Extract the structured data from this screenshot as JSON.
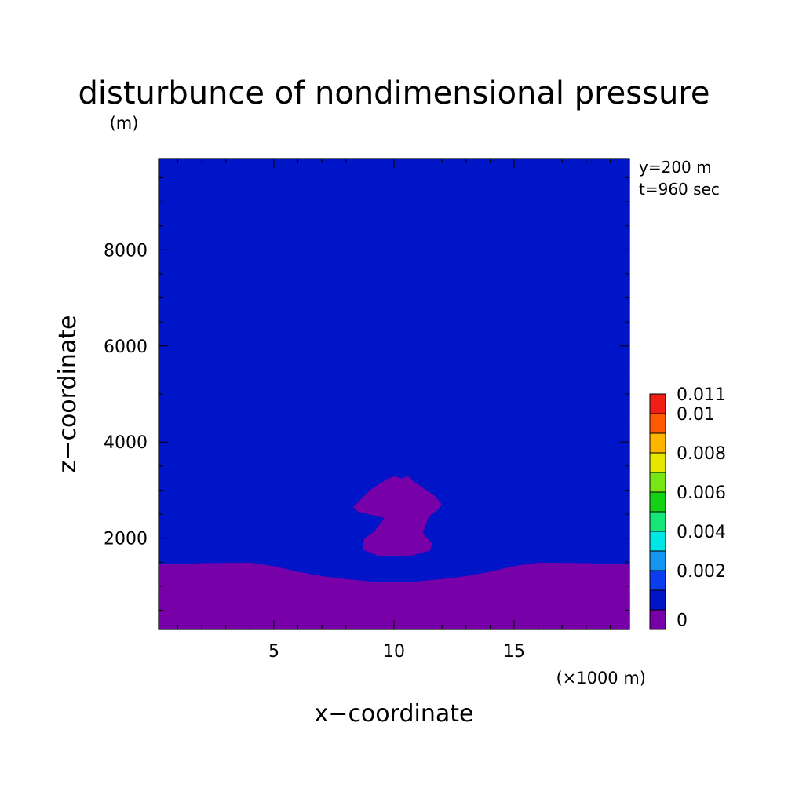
{
  "chart_data": {
    "type": "heatmap",
    "subtype": "filled-contour",
    "title": "disturbunce of nondimensional pressure",
    "xlabel": "x−coordinate",
    "ylabel": "z−coordinate",
    "x_unit_label": "(×1000 m)",
    "y_unit_label": "(m)",
    "annotations": [
      "y=200 m",
      "t=960 sec"
    ],
    "xlim": [
      0.2,
      19.8
    ],
    "ylim": [
      100,
      9900
    ],
    "x_ticks": [
      5,
      10,
      15
    ],
    "x_tick_labels": [
      "5",
      "10",
      "15"
    ],
    "y_ticks": [
      2000,
      4000,
      6000,
      8000
    ],
    "y_tick_labels": [
      "2000",
      "4000",
      "6000",
      "8000"
    ],
    "x_minor_step": 1,
    "y_minor_step": 500,
    "grid": false,
    "background_level": "0 to 0.001",
    "colorbar": {
      "placement": "right",
      "levels": [
        {
          "value": -0.001,
          "color": "#7800a8"
        },
        {
          "value": 0,
          "color": "#0014c8"
        },
        {
          "value": 0.001,
          "color": "#0a3cf0"
        },
        {
          "value": 0.002,
          "color": "#1496f0"
        },
        {
          "value": 0.003,
          "color": "#00e6e6"
        },
        {
          "value": 0.004,
          "color": "#14e678"
        },
        {
          "value": 0.005,
          "color": "#14d214"
        },
        {
          "value": 0.006,
          "color": "#78e614"
        },
        {
          "value": 0.007,
          "color": "#e6e600"
        },
        {
          "value": 0.008,
          "color": "#ffb400"
        },
        {
          "value": 0.009,
          "color": "#ff5a00"
        },
        {
          "value": 0.01,
          "color": "#f01e14"
        }
      ],
      "tick_labels": [
        {
          "value": 0.011,
          "text": "0.011"
        },
        {
          "value": 0.01,
          "text": "0.01"
        },
        {
          "value": 0.008,
          "text": "0.008"
        },
        {
          "value": 0.006,
          "text": "0.006"
        },
        {
          "value": 0.004,
          "text": "0.004"
        },
        {
          "value": 0.002,
          "text": "0.002"
        },
        {
          "value": 0,
          "text": "0"
        }
      ]
    },
    "regions": [
      {
        "name": "surface-negative-layer",
        "level": "below 0",
        "color": "#7800a8",
        "top_boundary": [
          [
            0.2,
            1450
          ],
          [
            2,
            1480
          ],
          [
            4,
            1490
          ],
          [
            5,
            1420
          ],
          [
            6,
            1300
          ],
          [
            7,
            1210
          ],
          [
            8,
            1150
          ],
          [
            9,
            1100
          ],
          [
            10,
            1080
          ],
          [
            11,
            1100
          ],
          [
            12,
            1150
          ],
          [
            13,
            1210
          ],
          [
            14,
            1300
          ],
          [
            15,
            1420
          ],
          [
            16,
            1490
          ],
          [
            18,
            1480
          ],
          [
            19.8,
            1450
          ]
        ]
      },
      {
        "name": "thermal-bubble-negative-region",
        "level": "below 0",
        "color": "#7800a8",
        "boundary": [
          [
            9.4,
            1620
          ],
          [
            10.6,
            1620
          ],
          [
            11.5,
            1740
          ],
          [
            11.6,
            1880
          ],
          [
            11.2,
            2100
          ],
          [
            11.45,
            2450
          ],
          [
            11.8,
            2580
          ],
          [
            12.0,
            2700
          ],
          [
            11.7,
            2880
          ],
          [
            11.2,
            3050
          ],
          [
            10.85,
            3170
          ],
          [
            10.6,
            3290
          ],
          [
            10.3,
            3240
          ],
          [
            10.05,
            3290
          ],
          [
            9.75,
            3240
          ],
          [
            9.4,
            3130
          ],
          [
            9.0,
            3000
          ],
          [
            8.6,
            2800
          ],
          [
            8.3,
            2650
          ],
          [
            8.5,
            2550
          ],
          [
            9.1,
            2480
          ],
          [
            9.6,
            2420
          ],
          [
            9.2,
            2150
          ],
          [
            8.75,
            1980
          ],
          [
            8.7,
            1760
          ]
        ]
      }
    ]
  }
}
